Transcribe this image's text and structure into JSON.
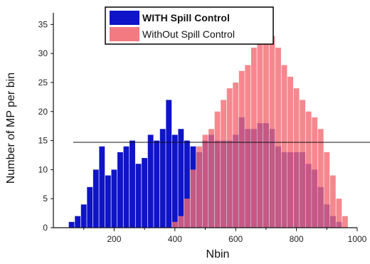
{
  "chart_data": {
    "type": "bar",
    "xlabel": "Nbin",
    "ylabel": "Number of MP per bin",
    "xlim": [
      0,
      1000
    ],
    "ylim": [
      0,
      37
    ],
    "xticks": [
      200,
      400,
      600,
      800,
      1000
    ],
    "yticks": [
      0,
      5,
      10,
      15,
      20,
      25,
      30,
      35
    ],
    "reference_line": {
      "y": 14.7
    },
    "legend_position": "top-center",
    "series": [
      {
        "name": "WITH Spill Control",
        "color": "#0f14c8",
        "bin_start": 40,
        "bin_step": 20,
        "values": [
          0,
          1,
          2,
          4,
          7,
          10,
          14,
          9,
          10,
          13,
          14,
          15,
          11,
          12,
          16,
          15,
          17,
          22,
          16,
          17,
          15,
          14,
          13,
          15,
          16,
          15,
          15,
          15,
          16,
          19,
          17,
          17,
          18,
          18,
          17,
          14,
          13,
          13,
          13,
          13,
          11,
          10,
          7,
          4,
          2,
          1,
          0,
          0
        ]
      },
      {
        "name": "WithOut Spill Control",
        "color": "#f26a72",
        "bin_start": 40,
        "bin_step": 20,
        "values": [
          0,
          0,
          0,
          0,
          0,
          0,
          0,
          0,
          0,
          0,
          0,
          0,
          0,
          0,
          0,
          0,
          0,
          0,
          1,
          2,
          5,
          10,
          14,
          16,
          17,
          20,
          22,
          24,
          25,
          27,
          28,
          31,
          32,
          34,
          33,
          31,
          28,
          26,
          24,
          22,
          20,
          19,
          17,
          13,
          9,
          5,
          2,
          0
        ]
      }
    ]
  }
}
